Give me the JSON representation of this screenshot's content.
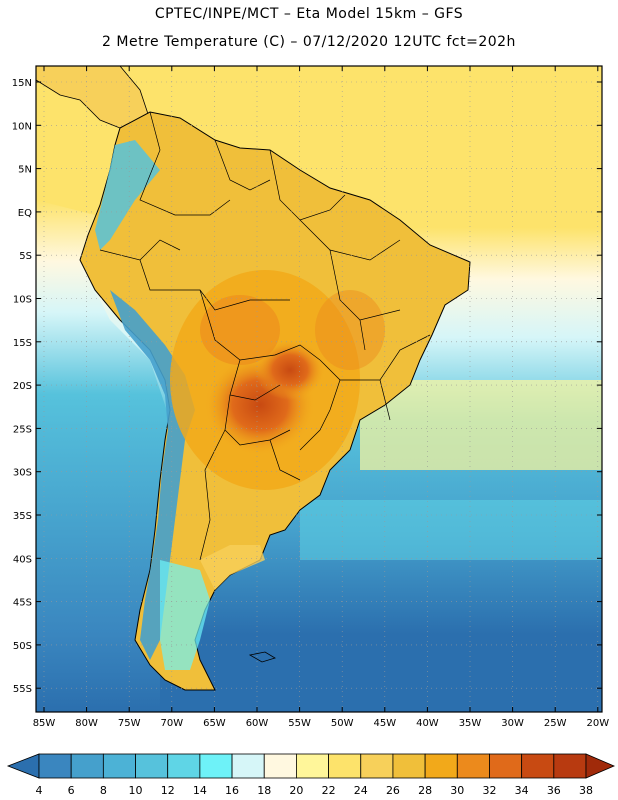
{
  "header": {
    "line1": "CPTEC/INPE/MCT –  Eta Model 15km – GFS",
    "line2": "2 Metre Temperature (C) – 07/12/2020 12UTC fct=202h"
  },
  "map": {
    "lat_labels": [
      "15N",
      "10N",
      "5N",
      "EQ",
      "5S",
      "10S",
      "15S",
      "20S",
      "25S",
      "30S",
      "35S",
      "40S",
      "45S",
      "50S",
      "55S"
    ],
    "lon_labels": [
      "85W",
      "80W",
      "75W",
      "70W",
      "65W",
      "60W",
      "55W",
      "50W",
      "45W",
      "40W",
      "35W",
      "30W",
      "25W",
      "20W"
    ]
  },
  "legend": {
    "levels": [
      "4",
      "6",
      "8",
      "10",
      "12",
      "14",
      "16",
      "18",
      "20",
      "22",
      "24",
      "26",
      "28",
      "30",
      "32",
      "34",
      "36",
      "38"
    ],
    "colors": [
      "#2b6fae",
      "#3a86bf",
      "#45a0cc",
      "#4cb2d6",
      "#56c2dc",
      "#5fd5e6",
      "#6ef2f8",
      "#d6f6f8",
      "#fff8e0",
      "#fff69a",
      "#fde36b",
      "#f7d05a",
      "#f0bf3a",
      "#f2a91a",
      "#ec8a1c",
      "#e06a1a",
      "#c84a12",
      "#b83a10",
      "#a02a0a"
    ]
  }
}
